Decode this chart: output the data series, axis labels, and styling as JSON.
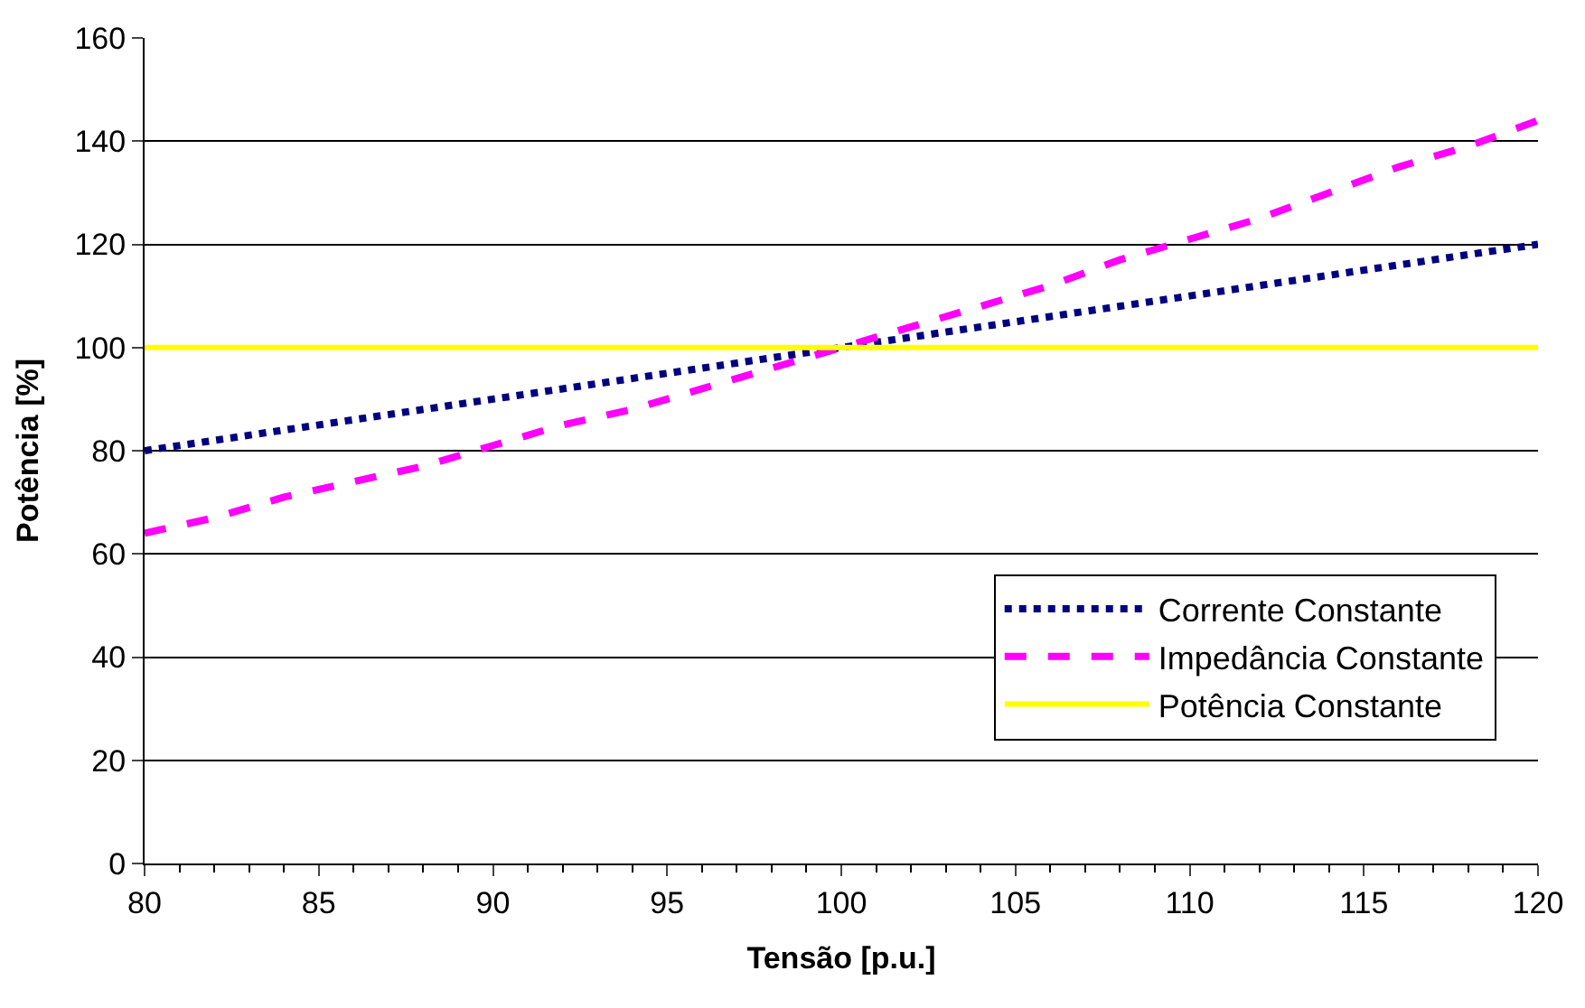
{
  "chart_data": {
    "type": "line",
    "xlabel": "Tensão [p.u.]",
    "ylabel": "Potência [%]",
    "x": [
      80,
      82,
      84,
      86,
      88,
      90,
      92,
      94,
      96,
      98,
      100,
      102,
      104,
      106,
      108,
      110,
      112,
      114,
      116,
      118,
      120
    ],
    "series": [
      {
        "name": "Corrente Constante",
        "color": "#000080",
        "line_style": "dotted",
        "values": [
          80,
          82,
          84,
          86,
          88,
          90,
          92,
          94,
          96,
          98,
          100,
          102,
          104,
          106,
          108,
          110,
          112,
          114,
          116,
          118,
          120
        ]
      },
      {
        "name": "Impedância Constante",
        "color": "#ff00ff",
        "line_style": "dashed",
        "values": [
          64,
          67,
          71,
          74,
          77,
          81,
          85,
          88,
          92,
          96,
          100,
          104,
          108,
          112,
          117,
          121,
          125,
          130,
          135,
          139,
          144
        ]
      },
      {
        "name": "Potência Constante",
        "color": "#ffff00",
        "line_style": "solid",
        "values": [
          100,
          100,
          100,
          100,
          100,
          100,
          100,
          100,
          100,
          100,
          100,
          100,
          100,
          100,
          100,
          100,
          100,
          100,
          100,
          100,
          100
        ]
      }
    ],
    "xlim": [
      80,
      120
    ],
    "xticks": [
      80,
      85,
      90,
      95,
      100,
      105,
      110,
      115,
      120
    ],
    "ylim": [
      0,
      160
    ],
    "yticks": [
      0,
      20,
      40,
      60,
      80,
      100,
      120,
      140,
      160
    ],
    "grid": "y",
    "legend": "right",
    "marker": "none"
  }
}
